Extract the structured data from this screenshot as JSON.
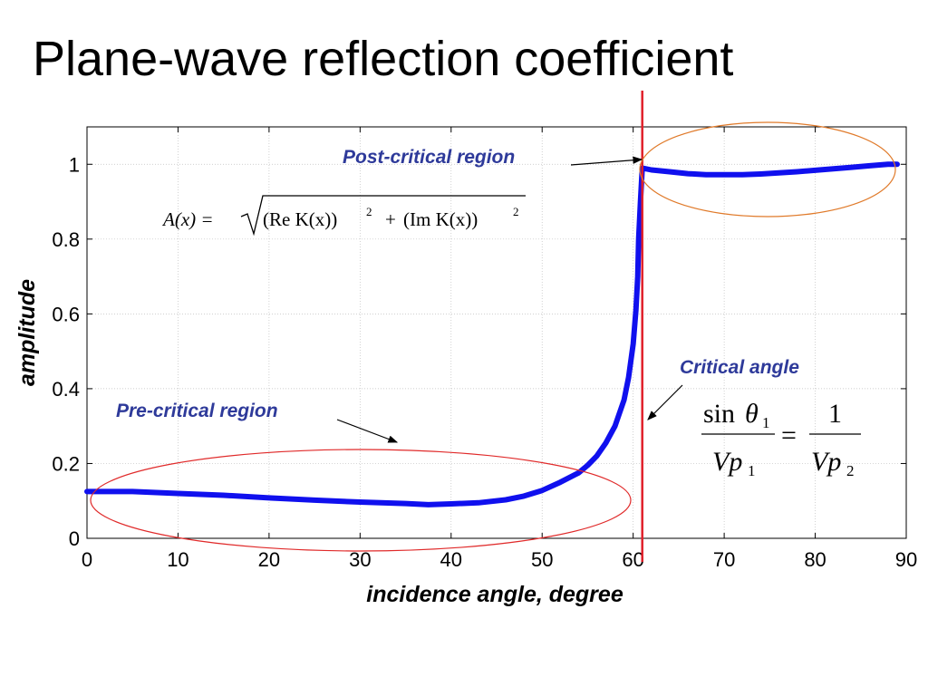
{
  "slide": {
    "title": "Plane-wave reflection coefficient"
  },
  "chart_data": {
    "type": "line",
    "xlabel": "incidence angle, degree",
    "ylabel": "amplitude",
    "xlim": [
      0,
      90
    ],
    "ylim": [
      0,
      1.1
    ],
    "xticks": [
      0,
      10,
      20,
      30,
      40,
      50,
      60,
      70,
      80,
      90
    ],
    "yticks": [
      0,
      0.2,
      0.4,
      0.6,
      0.8,
      1
    ],
    "xtick_labels": [
      "0",
      "10",
      "20",
      "30",
      "40",
      "50",
      "60",
      "70",
      "80",
      "90"
    ],
    "ytick_labels": [
      "0",
      "0.2",
      "0.4",
      "0.6",
      "0.8",
      "1"
    ],
    "grid": true,
    "series": [
      {
        "color": "#1010ee",
        "x": [
          0,
          5,
          10,
          15,
          20,
          25,
          30,
          35,
          37.5,
          40,
          43,
          46,
          48,
          50,
          52,
          54,
          55,
          56,
          57,
          58,
          59,
          59.5,
          60,
          60.3,
          60.5,
          60.6,
          60.8,
          61,
          62,
          64,
          66,
          68,
          70,
          72,
          74,
          76,
          78,
          80,
          82,
          84,
          86,
          88,
          89
        ],
        "y": [
          0.125,
          0.125,
          0.12,
          0.115,
          0.108,
          0.102,
          0.097,
          0.093,
          0.09,
          0.092,
          0.095,
          0.103,
          0.113,
          0.128,
          0.15,
          0.175,
          0.195,
          0.22,
          0.255,
          0.3,
          0.37,
          0.43,
          0.52,
          0.61,
          0.7,
          0.8,
          0.9,
          0.99,
          0.985,
          0.98,
          0.975,
          0.972,
          0.972,
          0.972,
          0.974,
          0.977,
          0.98,
          0.984,
          0.988,
          0.992,
          0.996,
          1.0,
          1.0
        ]
      }
    ],
    "critical_angle": 61,
    "annotations": {
      "post_critical": "Post-critical region",
      "pre_critical": "Pre-critical region",
      "critical": "Critical angle"
    },
    "equations": {
      "amplitude": {
        "lhs": "A(x) =",
        "term1": "(Re K(x))",
        "plus": "+",
        "term2": "(Im K(x))",
        "exp": "2"
      },
      "snell": {
        "sin": "sin",
        "theta": "θ",
        "sub1": "1",
        "vp": "Vp",
        "sub2": "2",
        "one": "1",
        "eq": "="
      }
    }
  },
  "colors": {
    "curve": "#1010ee",
    "critical_line": "#e0202a",
    "annotation_text": "#2e3a9a",
    "pre_ellipse": "#e02a2a",
    "post_ellipse": "#e07a2a"
  }
}
